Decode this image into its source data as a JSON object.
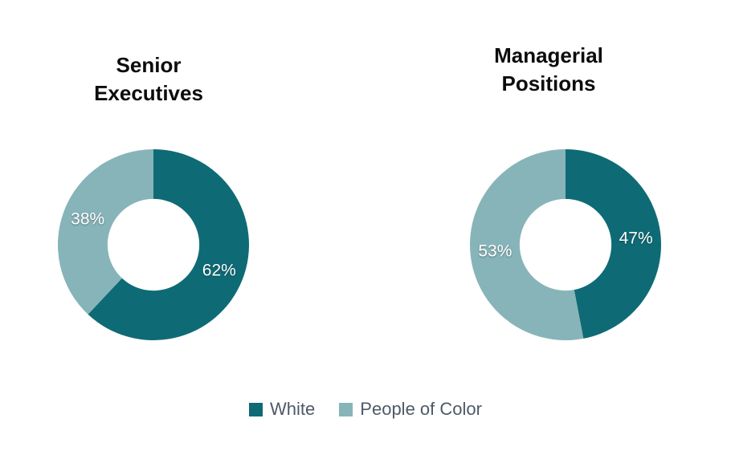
{
  "background": "#ffffff",
  "charts": [
    {
      "title_lines": [
        "Senior",
        "Executives"
      ],
      "slices": [
        {
          "name": "White",
          "value": 62,
          "label": "62%",
          "color": "#0e6b75"
        },
        {
          "name": "People of Color",
          "value": 38,
          "label": "38%",
          "color": "#87b4b9"
        }
      ]
    },
    {
      "title_lines": [
        "Managerial",
        "Positions"
      ],
      "slices": [
        {
          "name": "White",
          "value": 47,
          "label": "47%",
          "color": "#0e6b75"
        },
        {
          "name": "People of Color",
          "value": 53,
          "label": "53%",
          "color": "#87b4b9"
        }
      ]
    }
  ],
  "legend": {
    "items": [
      {
        "label": "White",
        "color": "#0e6b75"
      },
      {
        "label": "People of Color",
        "color": "#87b4b9"
      }
    ],
    "text_color": "#4d5a66"
  },
  "chart_data": [
    {
      "type": "pie",
      "subtype": "donut",
      "title": "Senior Executives",
      "categories": [
        "White",
        "People of Color"
      ],
      "values": [
        62,
        38
      ],
      "labels": [
        "62%",
        "38%"
      ],
      "unit": "%",
      "colors": [
        "#0e6b75",
        "#87b4b9"
      ],
      "start_angle_deg": 0,
      "direction": "clockwise",
      "hole_ratio": 0.48,
      "legend_position": "bottom"
    },
    {
      "type": "pie",
      "subtype": "donut",
      "title": "Managerial Positions",
      "categories": [
        "White",
        "People of Color"
      ],
      "values": [
        47,
        53
      ],
      "labels": [
        "47%",
        "53%"
      ],
      "unit": "%",
      "colors": [
        "#0e6b75",
        "#87b4b9"
      ],
      "start_angle_deg": 0,
      "direction": "clockwise",
      "hole_ratio": 0.48,
      "legend_position": "bottom"
    }
  ]
}
